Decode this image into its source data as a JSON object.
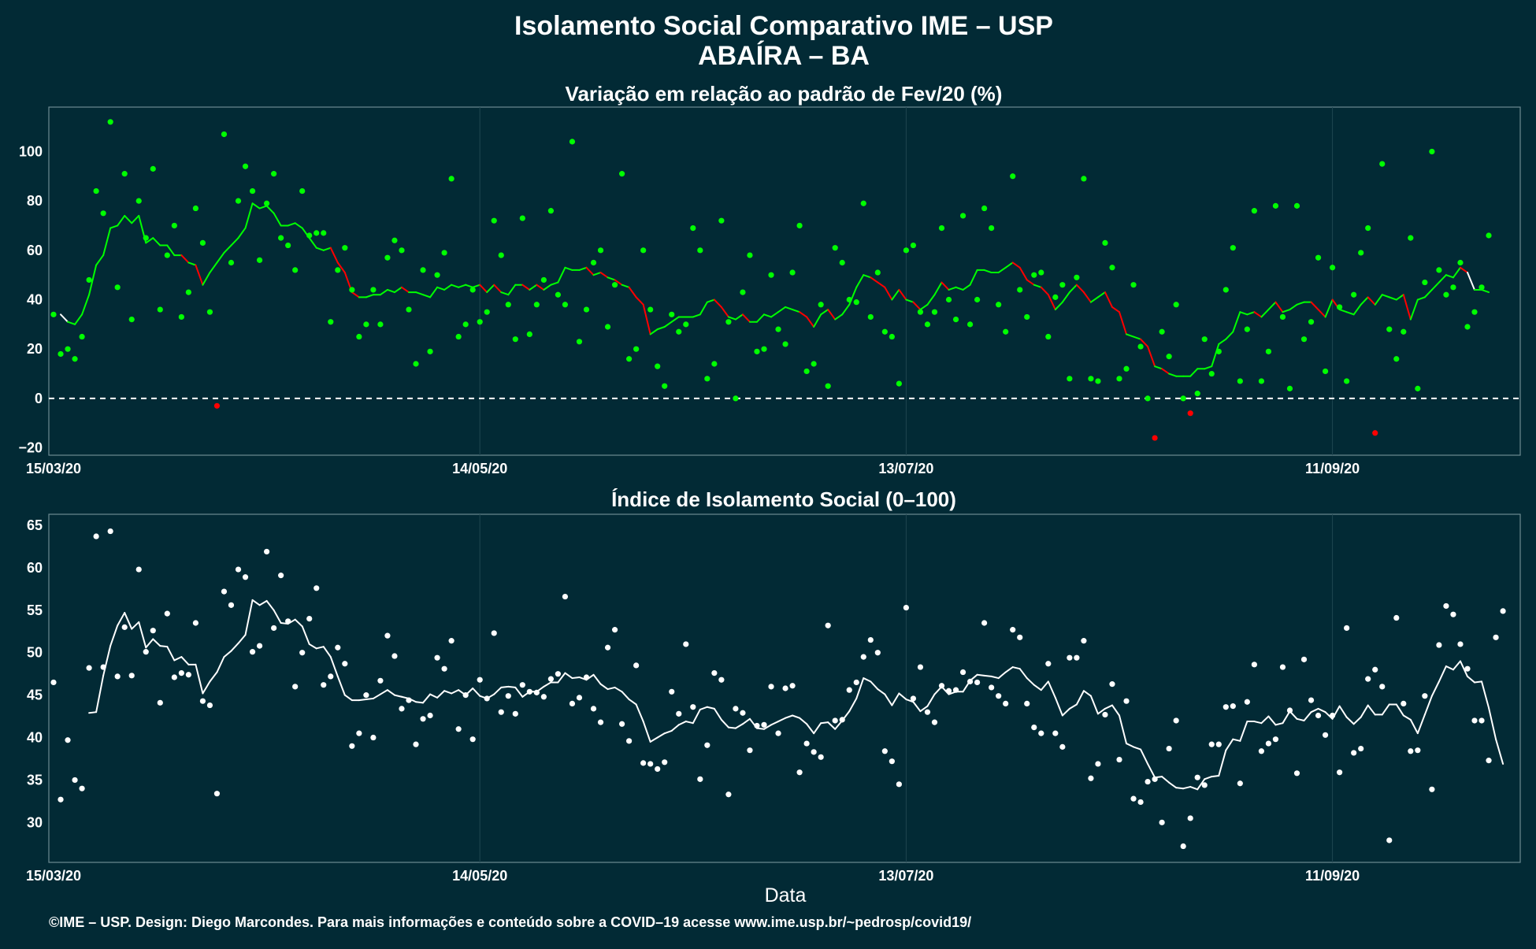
{
  "title_line1": "Isolamento Social Comparativo IME – USP",
  "title_line2": "ABAÍRA – BA",
  "footer": "©IME – USP. Design: Diego Marcondes. Para mais informações e conteúdo sobre a COVID–19 acesse www.ime.usp.br/~pedrosp/covid19/",
  "colors": {
    "background": "#022a35",
    "grid": "#1f4650",
    "positive": "#00ff00",
    "negative": "#ff0000",
    "index": "#ffffff"
  },
  "chart_data": [
    {
      "type": "scatter",
      "title": "Variação em relação ao padrão de Fev/20 (%)",
      "xlabel": "",
      "ylabel": "",
      "x_tick_labels": [
        "15/03/20",
        "14/05/20",
        "13/07/20",
        "11/09/20"
      ],
      "y_ticks": [
        -20,
        0,
        20,
        40,
        60,
        80,
        100
      ],
      "y_tick_labels": [
        "−20",
        "0",
        "20",
        "40",
        "60",
        "80",
        "100"
      ],
      "ylim": [
        -23,
        118
      ],
      "reference_line": 0,
      "grid": true,
      "series": [
        {
          "label": "daily",
          "values": [
            34,
            18,
            20,
            16,
            25,
            48,
            84,
            75,
            112,
            45,
            91,
            32,
            80,
            65,
            93,
            36,
            58,
            70,
            33,
            43,
            77,
            63,
            35,
            -3,
            107,
            55,
            80,
            94,
            84,
            56,
            79,
            91,
            65,
            62,
            52,
            84,
            66,
            67,
            67,
            31,
            52,
            61,
            44,
            25,
            30,
            44,
            30,
            57,
            64,
            60,
            36,
            14,
            52,
            19,
            50,
            59,
            89,
            25,
            30,
            44,
            31,
            35,
            72,
            58,
            38,
            24,
            73,
            26,
            38,
            48,
            76,
            42,
            38,
            104,
            23,
            36,
            55,
            60,
            29,
            46,
            91,
            16,
            20,
            60,
            36,
            13,
            5,
            34,
            27,
            30,
            69,
            60,
            8,
            14,
            72,
            31,
            0,
            43,
            58,
            19,
            20,
            50,
            28,
            22,
            51,
            70,
            11,
            14,
            38,
            5,
            61,
            55,
            40,
            39,
            79,
            33,
            51,
            27,
            25,
            6,
            60,
            62,
            35,
            30,
            35,
            69,
            40,
            32,
            74,
            30,
            40,
            77,
            69,
            38,
            27,
            90,
            44,
            33,
            50,
            51,
            25,
            41,
            46,
            8,
            49,
            89,
            8,
            7,
            63,
            53,
            8,
            12,
            46,
            21,
            0,
            -16,
            27,
            17,
            38,
            0,
            -6,
            2,
            24,
            10,
            19,
            44,
            61,
            7,
            28,
            76,
            7,
            19,
            78,
            33,
            4,
            78,
            24,
            31,
            57,
            11,
            53,
            37,
            7,
            42,
            59,
            69,
            -14,
            95,
            28,
            16,
            27,
            65,
            4,
            47,
            100,
            52,
            42,
            45,
            55,
            29,
            35,
            45,
            66
          ]
        },
        {
          "label": "moving average",
          "values": [
            34,
            31,
            30,
            34,
            42,
            54,
            58,
            69,
            70,
            74,
            71,
            74,
            63,
            65,
            62,
            62,
            58,
            58,
            55,
            54,
            46,
            51,
            55,
            59,
            62,
            65,
            69,
            79,
            77,
            78,
            75,
            70,
            70,
            71,
            69,
            65,
            61,
            60,
            61,
            55,
            51,
            43,
            41,
            41,
            42,
            42,
            44,
            43,
            45,
            43,
            43,
            42,
            41,
            45,
            44,
            46,
            45,
            46,
            45,
            46,
            43,
            46,
            43,
            42,
            46,
            46,
            44,
            46,
            44,
            46,
            47,
            53,
            52,
            52,
            53,
            50,
            51,
            49,
            48,
            46,
            45,
            41,
            38,
            26,
            28,
            29,
            31,
            33,
            33,
            33,
            34,
            39,
            40,
            37,
            33,
            32,
            34,
            31,
            31,
            34,
            33,
            35,
            37,
            36,
            35,
            33,
            29,
            34,
            36,
            32,
            34,
            38,
            45,
            50,
            49,
            47,
            45,
            40,
            44,
            40,
            39,
            36,
            38,
            42,
            47,
            44,
            45,
            44,
            46,
            52,
            52,
            51,
            51,
            53,
            55,
            53,
            48,
            46,
            45,
            42,
            36,
            39,
            43,
            46,
            43,
            39,
            41,
            43,
            37,
            35,
            26,
            25,
            24,
            21,
            13,
            12,
            10,
            9,
            9,
            9,
            12,
            12,
            13,
            22,
            24,
            27,
            35,
            34,
            35,
            33,
            36,
            39,
            35,
            36,
            38,
            39,
            39,
            36,
            33,
            40,
            36,
            35,
            34,
            38,
            41,
            38,
            42,
            41,
            40,
            42,
            32,
            40,
            41,
            44,
            47,
            50,
            49,
            53,
            51,
            44,
            44,
            43
          ]
        }
      ]
    },
    {
      "type": "scatter",
      "title": "Índice de Isolamento Social (0–100)",
      "xlabel": "Data",
      "ylabel": "",
      "x_tick_labels": [
        "15/03/20",
        "14/05/20",
        "13/07/20",
        "11/09/20"
      ],
      "y_ticks": [
        30,
        35,
        40,
        45,
        50,
        55,
        60,
        65
      ],
      "y_tick_labels": [
        "30",
        "35",
        "40",
        "45",
        "50",
        "55",
        "60",
        "65"
      ],
      "ylim": [
        25.3,
        66.3
      ],
      "grid": true,
      "series": [
        {
          "label": "daily",
          "values": [
            46.5,
            32.7,
            39.7,
            35.0,
            34.0,
            48.2,
            63.7,
            48.3,
            64.3,
            47.2,
            53.0,
            47.3,
            59.8,
            50.1,
            52.6,
            44.1,
            54.6,
            47.1,
            47.6,
            47.4,
            53.5,
            44.3,
            43.8,
            33.4,
            57.2,
            55.6,
            59.8,
            58.9,
            50.1,
            50.8,
            61.9,
            52.9,
            59.1,
            53.7,
            46.0,
            50.0,
            54.0,
            57.6,
            46.2,
            47.2,
            50.6,
            48.7,
            39.0,
            40.5,
            45.0,
            40.0,
            46.7,
            52.0,
            49.6,
            43.4,
            44.4,
            39.2,
            42.2,
            42.6,
            49.4,
            48.1,
            51.4,
            41.0,
            45.0,
            39.8,
            46.8,
            44.6,
            52.3,
            43.0,
            44.9,
            42.8,
            46.2,
            45.4,
            45.3,
            44.8,
            46.9,
            47.5,
            56.6,
            44.0,
            44.7,
            47.1,
            43.4,
            41.8,
            50.6,
            52.7,
            41.6,
            39.6,
            48.5,
            37.0,
            36.9,
            36.3,
            37.1,
            45.4,
            42.8,
            51.0,
            43.6,
            35.1,
            39.1,
            47.6,
            46.8,
            33.3,
            43.4,
            42.9,
            38.5,
            41.4,
            41.5,
            46.0,
            40.5,
            45.8,
            46.1,
            35.9,
            39.3,
            38.3,
            37.7,
            53.2,
            42.0,
            42.1,
            45.6,
            46.5,
            49.5,
            51.5,
            50.0,
            38.4,
            37.2,
            34.5,
            55.3,
            44.6,
            48.3,
            43.0,
            41.8,
            46.1,
            45.5,
            45.6,
            47.7,
            46.6,
            46.5,
            53.5,
            45.9,
            44.9,
            44.0,
            52.7,
            51.8,
            44.0,
            41.2,
            40.5,
            48.7,
            40.5,
            38.9,
            49.4,
            49.4,
            51.4,
            35.2,
            36.9,
            42.7,
            46.3,
            37.4,
            44.3,
            32.8,
            32.4,
            34.8,
            35.1,
            30.0,
            38.7,
            42.0,
            27.2,
            30.5,
            35.3,
            34.4,
            39.2,
            39.2,
            43.6,
            43.7,
            34.6,
            44.2,
            48.6,
            38.4,
            39.3,
            39.8,
            48.3,
            43.2,
            35.8,
            49.2,
            44.4,
            42.6,
            40.3,
            42.6,
            35.9,
            52.9,
            38.2,
            38.7,
            46.9,
            48.0,
            46.0,
            27.9,
            54.1,
            44.0,
            38.4,
            38.5,
            44.9,
            33.9,
            50.9,
            55.5,
            54.5,
            51.0,
            48.1,
            42.0,
            42.0,
            37.3,
            51.8,
            54.9
          ]
        },
        {
          "label": "moving average",
          "values": [
            42.9,
            43.0,
            47.3,
            50.8,
            53.2,
            54.7,
            52.8,
            53.6,
            50.6,
            51.6,
            50.8,
            50.7,
            49.1,
            49.5,
            48.6,
            48.6,
            45.2,
            46.6,
            47.7,
            49.5,
            50.2,
            51.1,
            52.1,
            56.2,
            55.6,
            56.1,
            55.0,
            53.5,
            53.4,
            53.9,
            53.1,
            51.0,
            50.5,
            50.7,
            49.5,
            47.2,
            45.0,
            44.4,
            44.4,
            44.5,
            44.6,
            45.1,
            45.6,
            45.0,
            44.8,
            44.6,
            44.2,
            44.1,
            45.1,
            44.7,
            45.5,
            45.2,
            45.6,
            45.0,
            45.8,
            44.9,
            44.6,
            45.1,
            45.9,
            46.0,
            45.9,
            44.8,
            45.4,
            45.4,
            46.0,
            46.5,
            46.5,
            47.6,
            47.0,
            47.1,
            46.8,
            47.4,
            46.3,
            45.7,
            45.9,
            45.4,
            44.5,
            43.9,
            41.9,
            39.5,
            40.0,
            40.5,
            40.8,
            41.5,
            41.9,
            41.7,
            43.3,
            43.6,
            43.4,
            42.1,
            41.2,
            41.1,
            41.6,
            42.2,
            41.1,
            41.0,
            41.5,
            41.9,
            42.3,
            42.6,
            42.3,
            41.6,
            40.5,
            41.7,
            41.8,
            41.0,
            42.0,
            43.1,
            44.6,
            47.0,
            46.6,
            45.7,
            45.1,
            43.8,
            45.2,
            44.5,
            44.2,
            43.1,
            43.7,
            45.1,
            46.0,
            45.1,
            45.4,
            45.4,
            46.7,
            47.4,
            47.3,
            47.2,
            47.0,
            47.7,
            48.3,
            48.1,
            47.0,
            46.2,
            45.6,
            46.6,
            44.7,
            42.6,
            43.4,
            43.9,
            45.5,
            44.9,
            42.8,
            43.4,
            43.8,
            42.6,
            39.3,
            38.9,
            38.6,
            36.9,
            35.3,
            35.4,
            34.7,
            34.1,
            34.0,
            34.2,
            33.9,
            35.1,
            35.4,
            35.5,
            38.5,
            39.8,
            39.6,
            41.9,
            41.9,
            41.7,
            42.5,
            41.5,
            41.7,
            43.1,
            42.2,
            42.0,
            43.0,
            43.4,
            43.0,
            42.2,
            43.7,
            42.4,
            41.6,
            42.4,
            43.8,
            42.7,
            42.7,
            43.9,
            43.9,
            42.6,
            42.1,
            40.5,
            42.7,
            44.9,
            46.6,
            48.4,
            48.0,
            49.0,
            47.2,
            46.5,
            46.6,
            43.5,
            39.8,
            36.9
          ]
        }
      ]
    }
  ]
}
